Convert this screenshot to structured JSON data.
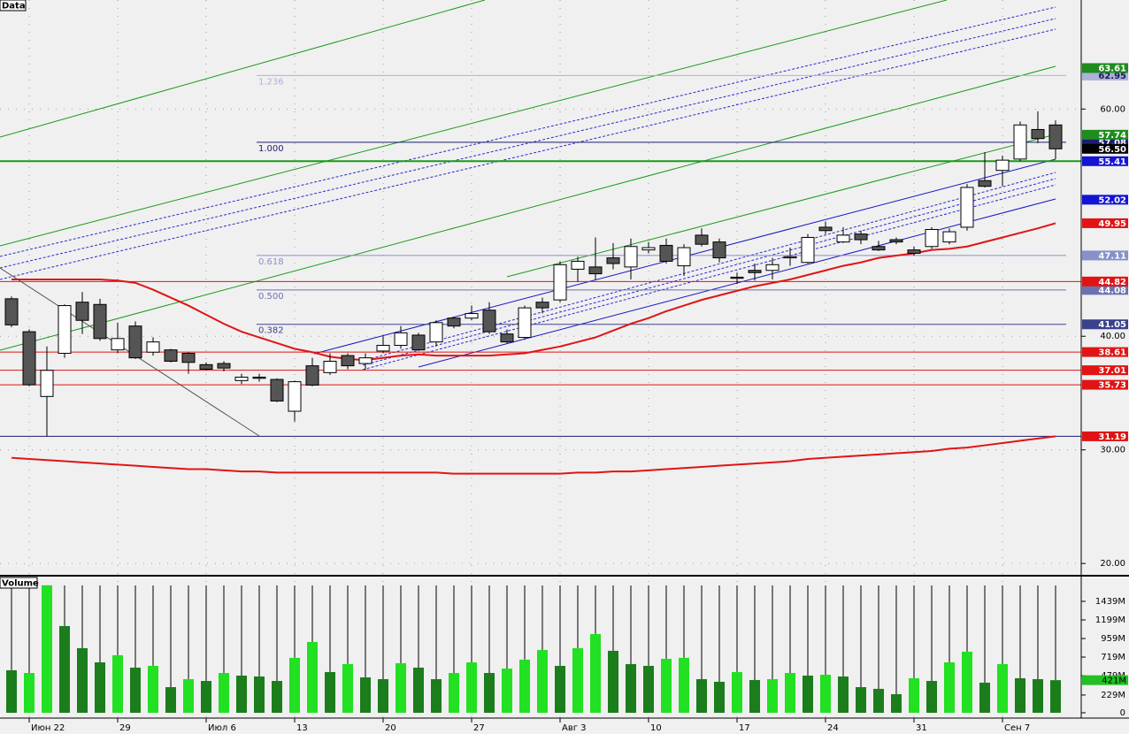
{
  "chart_data": [
    {
      "type": "candlestick",
      "title": "Data",
      "ylim": [
        19.0,
        69.6
      ],
      "yticks": [
        {
          "value": 60,
          "label": "60.00"
        },
        {
          "value": 40,
          "label": "40.00"
        },
        {
          "value": 30,
          "label": "30.00"
        },
        {
          "value": 20,
          "label": "20.00"
        }
      ],
      "grid": true,
      "up_color": "#ffffff",
      "down_color": "#555555",
      "open": [
        43.3,
        40.4,
        34.7,
        38.5,
        43.0,
        42.8,
        38.8,
        40.9,
        38.6,
        38.8,
        38.5,
        37.5,
        37.6,
        36.1,
        36.4,
        36.2,
        33.4,
        37.4,
        36.8,
        38.3,
        37.6,
        38.7,
        39.2,
        40.1,
        39.5,
        41.6,
        41.6,
        42.3,
        40.2,
        39.9,
        43.0,
        43.2,
        45.9,
        46.1,
        46.9,
        46.1,
        47.6,
        48.0,
        46.2,
        48.9,
        48.3,
        45.2,
        45.8,
        45.8,
        46.9,
        46.5,
        49.6,
        48.3,
        49.0,
        47.9,
        48.5,
        47.6,
        47.9,
        48.3,
        49.6,
        53.7,
        54.6,
        55.6,
        58.2,
        58.6
      ],
      "high": [
        43.5,
        40.6,
        39.1,
        42.8,
        43.9,
        43.3,
        41.2,
        41.3,
        39.9,
        38.9,
        38.6,
        37.7,
        37.8,
        36.7,
        36.7,
        36.3,
        36.1,
        38.1,
        38.5,
        38.5,
        38.5,
        40.0,
        40.9,
        40.3,
        41.4,
        41.7,
        42.7,
        43.0,
        40.6,
        42.7,
        43.4,
        46.6,
        47.0,
        48.7,
        48.2,
        48.6,
        48.3,
        48.6,
        48.1,
        49.5,
        48.6,
        45.6,
        46.4,
        46.9,
        47.8,
        49.0,
        50.1,
        49.6,
        49.3,
        48.4,
        48.7,
        47.9,
        49.6,
        49.5,
        53.4,
        56.2,
        55.9,
        58.9,
        59.8,
        59.0
      ],
      "low": [
        40.8,
        35.6,
        31.19,
        38.1,
        40.2,
        39.6,
        38.5,
        38.0,
        38.3,
        37.7,
        36.7,
        37.0,
        36.9,
        35.8,
        36.0,
        34.2,
        32.5,
        35.6,
        36.6,
        37.1,
        37.1,
        38.5,
        38.9,
        38.7,
        39.1,
        40.7,
        41.4,
        40.2,
        39.4,
        39.7,
        42.0,
        43.0,
        44.8,
        45.0,
        45.9,
        45.0,
        47.3,
        46.4,
        45.3,
        47.9,
        46.5,
        44.6,
        44.9,
        45.0,
        46.2,
        46.4,
        49.0,
        48.2,
        48.1,
        47.5,
        48.1,
        47.1,
        47.7,
        48.1,
        49.3,
        53.1,
        53.2,
        55.4,
        57.0,
        55.6
      ],
      "close": [
        41.0,
        35.73,
        37.0,
        42.7,
        41.4,
        39.8,
        39.8,
        38.1,
        39.5,
        37.8,
        37.7,
        37.1,
        37.2,
        36.4,
        36.3,
        34.3,
        36.0,
        35.7,
        37.8,
        37.4,
        38.1,
        39.2,
        40.3,
        38.8,
        41.2,
        40.9,
        42.0,
        40.4,
        39.5,
        42.5,
        42.5,
        46.3,
        46.6,
        45.5,
        46.4,
        47.9,
        47.8,
        46.6,
        47.8,
        48.1,
        46.9,
        45.1,
        45.6,
        46.3,
        47.0,
        48.7,
        49.3,
        48.9,
        48.5,
        47.6,
        48.3,
        47.3,
        49.4,
        49.2,
        53.1,
        53.2,
        55.5,
        58.6,
        57.4,
        56.5
      ],
      "moving_averages": [
        {
          "color": "#e01414",
          "values": [
            45.0,
            45.0,
            45.0,
            45.0,
            45.0,
            45.0,
            44.9,
            44.7,
            44.1,
            43.4,
            42.7,
            41.9,
            41.1,
            40.4,
            39.9,
            39.4,
            38.9,
            38.6,
            38.2,
            38.0,
            37.9,
            38.1,
            38.3,
            38.4,
            38.3,
            38.3,
            38.3,
            38.3,
            38.4,
            38.5,
            38.8,
            39.1,
            39.5,
            39.9,
            40.5,
            41.1,
            41.6,
            42.2,
            42.7,
            43.2,
            43.6,
            44.0,
            44.4,
            44.7,
            45.0,
            45.4,
            45.8,
            46.2,
            46.5,
            46.9,
            47.1,
            47.3,
            47.6,
            47.7,
            47.9,
            48.3,
            48.7,
            49.1,
            49.5,
            49.95
          ]
        },
        {
          "color": "#e01414",
          "values": [
            29.3,
            29.2,
            29.1,
            29.0,
            28.9,
            28.8,
            28.7,
            28.6,
            28.5,
            28.4,
            28.3,
            28.3,
            28.2,
            28.1,
            28.1,
            28.0,
            28.0,
            28.0,
            28.0,
            28.0,
            28.0,
            28.0,
            28.0,
            28.0,
            28.0,
            27.9,
            27.9,
            27.9,
            27.9,
            27.9,
            27.9,
            27.9,
            28.0,
            28.0,
            28.1,
            28.1,
            28.2,
            28.3,
            28.4,
            28.5,
            28.6,
            28.7,
            28.8,
            28.9,
            29.0,
            29.2,
            29.3,
            29.4,
            29.5,
            29.6,
            29.7,
            29.8,
            29.9,
            30.1,
            30.2,
            30.4,
            30.6,
            30.8,
            31.0,
            31.19
          ]
        }
      ],
      "fibonacci": [
        {
          "ratio": "1.236",
          "price": 62.95,
          "color": "#aab2dc"
        },
        {
          "ratio": "1.000",
          "price": 57.08,
          "color": "#1c1c70"
        },
        {
          "ratio": "0.618",
          "price": 47.11,
          "color": "#8890c8"
        },
        {
          "ratio": "0.500",
          "price": 44.08,
          "color": "#6a72b0"
        },
        {
          "ratio": "0.382",
          "price": 41.05,
          "color": "#3a428c"
        }
      ],
      "levels": [
        {
          "price": 63.61,
          "color": "#1e8c1e",
          "line": null
        },
        {
          "price": 57.74,
          "color": "#1e8c1e",
          "line": null
        },
        {
          "price": {
            "value": 56.5,
            "label": "56.50"
          },
          "color": "#000000",
          "line": null
        },
        {
          "price": 55.41,
          "color": "#1414d2",
          "line": "#1a9a1a"
        },
        {
          "price": 52.02,
          "color": "#1414d2",
          "line": null
        },
        {
          "price": 49.95,
          "color": "#e01414",
          "line": null
        },
        {
          "price": 44.82,
          "color": "#e01414",
          "line": "#e01414"
        },
        {
          "price": 38.61,
          "color": "#e01414",
          "line": "#e01414"
        },
        {
          "price": 37.01,
          "color": "#e01414",
          "line": "#e01414"
        },
        {
          "price": 35.73,
          "color": "#e01414",
          "line": "#e01414"
        },
        {
          "price": 31.19,
          "color": "#e01414",
          "line": "#1c1c70"
        }
      ]
    },
    {
      "type": "bar",
      "title": "Volume",
      "categories": [
        null,
        "Июн 22",
        null,
        null,
        null,
        null,
        "29",
        null,
        null,
        null,
        null,
        "Июл 6",
        null,
        null,
        null,
        null,
        "13",
        null,
        null,
        null,
        null,
        "20",
        null,
        null,
        null,
        null,
        "27",
        null,
        null,
        null,
        null,
        "Авг 3",
        null,
        null,
        null,
        null,
        "10",
        null,
        null,
        null,
        null,
        "17",
        null,
        null,
        null,
        null,
        "24",
        null,
        null,
        null,
        null,
        "31",
        null,
        null,
        null,
        null,
        "Сен 7",
        null,
        null,
        null
      ],
      "ylim": [
        0,
        1690
      ],
      "yticks": [
        0,
        {
          "value": 229,
          "label": "229M"
        },
        {
          "value": 479,
          "label": "479M"
        },
        {
          "value": 719,
          "label": "719M"
        },
        {
          "value": 959,
          "label": "959M"
        },
        {
          "value": 1199,
          "label": "1199M"
        },
        {
          "value": 1439,
          "label": "1439M"
        }
      ],
      "values": [
        549,
        514,
        1646,
        1120,
        834,
        651,
        743,
        583,
        606,
        331,
        434,
        411,
        514,
        480,
        469,
        411,
        709,
        914,
        526,
        629,
        457,
        434,
        640,
        583,
        434,
        514,
        651,
        514,
        571,
        686,
        811,
        606,
        834,
        1017,
        800,
        629,
        606,
        697,
        709,
        434,
        400,
        526,
        423,
        434,
        514,
        480,
        491,
        469,
        331,
        309,
        240,
        446,
        411,
        651,
        789,
        389,
        629,
        446,
        434,
        421
      ],
      "colors": [
        "#1b7d1b",
        "#22e022",
        "#22e022",
        "#1b7d1b",
        "#1b7d1b",
        "#1b7d1b",
        "#22e022",
        "#1b7d1b",
        "#22e022",
        "#1b7d1b",
        "#22e022",
        "#1b7d1b",
        "#22e022",
        "#1b7d1b",
        "#1b7d1b",
        "#1b7d1b",
        "#22e022",
        "#22e022",
        "#1b7d1b",
        "#22e022",
        "#1b7d1b",
        "#1b7d1b",
        "#22e022",
        "#1b7d1b",
        "#1b7d1b",
        "#22e022",
        "#22e022",
        "#1b7d1b",
        "#22e022",
        "#22e022",
        "#22e022",
        "#1b7d1b",
        "#22e022",
        "#22e022",
        "#1b7d1b",
        "#1b7d1b",
        "#1b7d1b",
        "#22e022",
        "#22e022",
        "#1b7d1b",
        "#1b7d1b",
        "#22e022",
        "#1b7d1b",
        "#22e022",
        "#22e022",
        "#1b7d1b",
        "#22e022",
        "#1b7d1b",
        "#1b7d1b",
        "#1b7d1b",
        "#1b7d1b",
        "#22e022",
        "#1b7d1b",
        "#22e022",
        "#22e022",
        "#1b7d1b",
        "#22e022",
        "#1b7d1b",
        "#1b7d1b",
        "#1b7d1b"
      ],
      "current": {
        "value": 421,
        "label": "421M",
        "color": "#22c022"
      }
    }
  ]
}
